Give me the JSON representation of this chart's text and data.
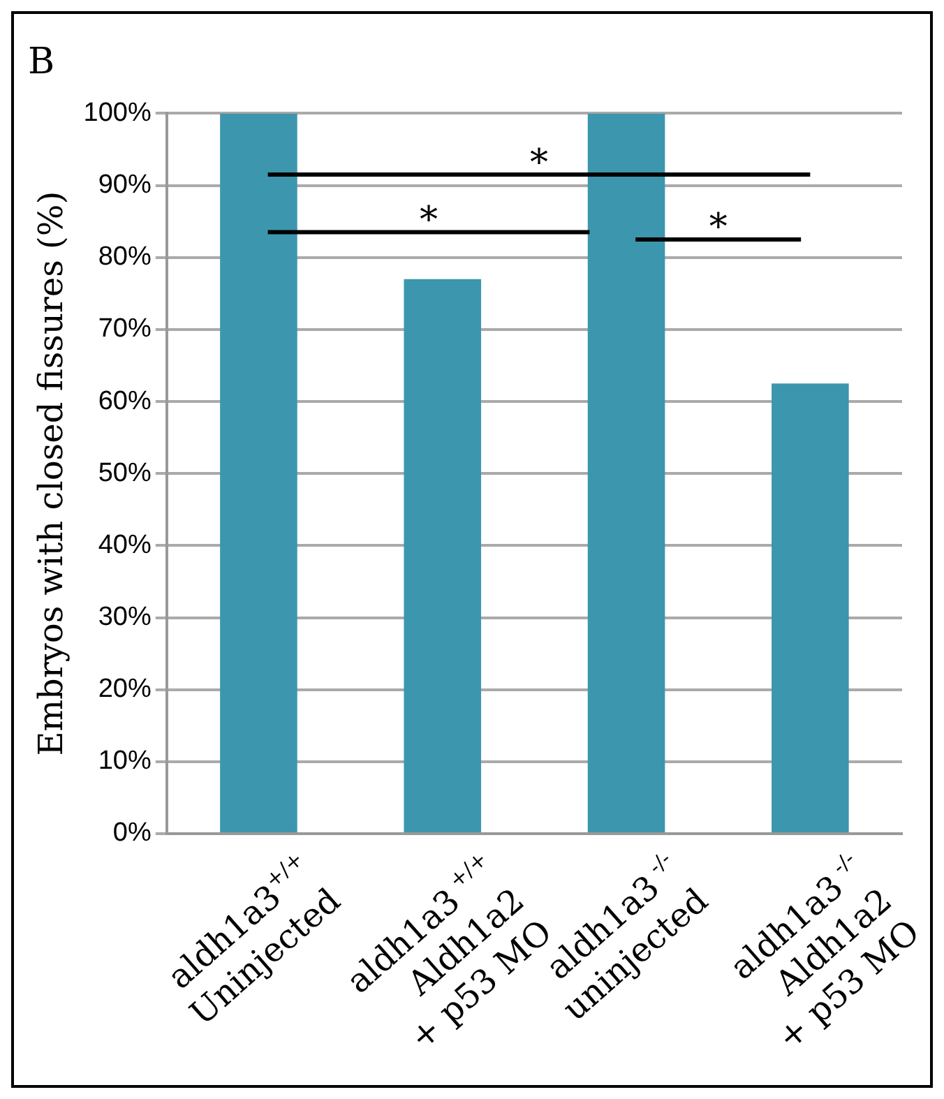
{
  "chart_data": {
    "type": "bar",
    "title": "B",
    "ylabel": "Embryos with closed fissures (%)",
    "categories": [
      "aldh1a3$^{+/+}$\nUninjected",
      "aldh1a3$^{ +/+}$\nAldh1a2\n+ p53 MO",
      "aldh1a3$^{ -/-}$\nuninjected",
      "aldh1a3$^{ -/-}$\nAldh1a2\n+ p53 MO"
    ],
    "values": [
      100,
      77,
      100,
      62.5
    ],
    "color": "#3c96ae",
    "ylim": [
      0,
      100
    ],
    "yticks": [
      {
        "value": 0,
        "label": "0%"
      },
      {
        "value": 10,
        "label": "10%"
      },
      {
        "value": 20,
        "label": "20%"
      },
      {
        "value": 30,
        "label": "30%"
      },
      {
        "value": 40,
        "label": "40%"
      },
      {
        "value": 50,
        "label": "50%"
      },
      {
        "value": 60,
        "label": "60%"
      },
      {
        "value": 70,
        "label": "70%"
      },
      {
        "value": 80,
        "label": "80%"
      },
      {
        "value": 90,
        "label": "90%"
      },
      {
        "value": 100,
        "label": "100%"
      }
    ],
    "grid": "y",
    "legend": false,
    "annotations": [
      "*",
      "*",
      "*"
    ]
  }
}
